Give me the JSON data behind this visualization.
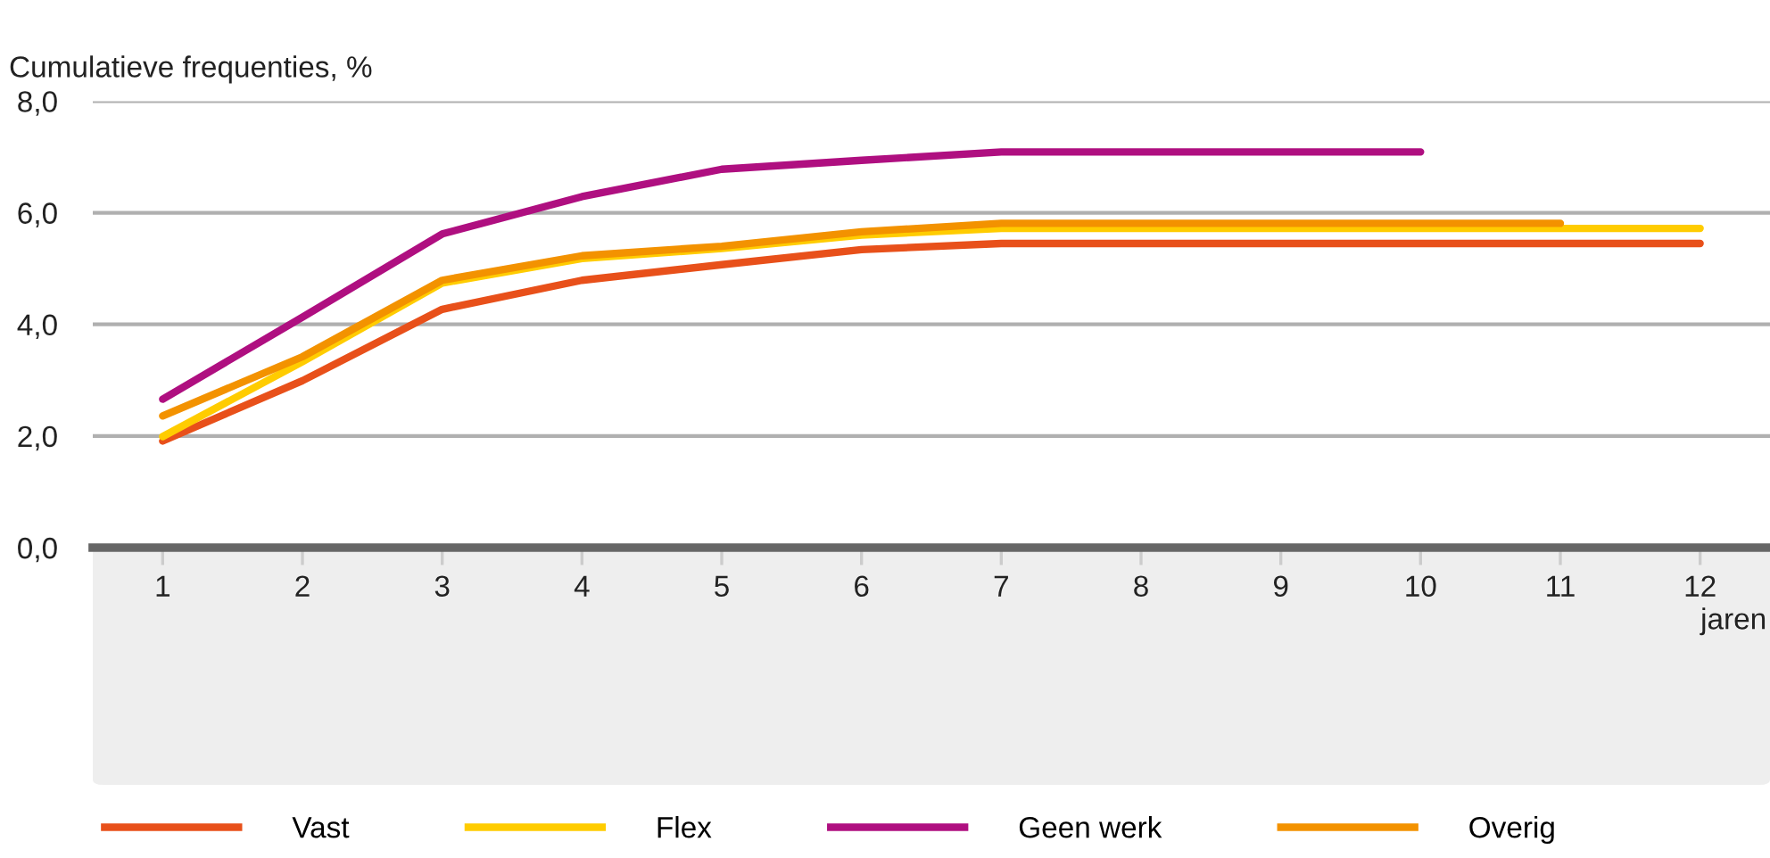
{
  "chart_data": {
    "type": "line",
    "ylabel": "Cumulatieve frequenties, %",
    "xlabel": "jaren",
    "categories": [
      "1",
      "2",
      "3",
      "4",
      "5",
      "6",
      "7",
      "8",
      "9",
      "10",
      "11",
      "12"
    ],
    "series": [
      {
        "name": "Vast",
        "color": "#e8501a",
        "values": [
          1.91,
          2.99,
          4.27,
          4.79,
          5.07,
          5.34,
          5.45,
          5.45,
          5.45,
          5.45,
          5.45,
          5.45
        ]
      },
      {
        "name": "Flex",
        "color": "#ffcc00",
        "values": [
          1.99,
          3.33,
          4.74,
          5.18,
          5.36,
          5.6,
          5.72,
          5.72,
          5.72,
          5.72,
          5.72,
          5.72
        ]
      },
      {
        "name": "Geen werk",
        "color": "#af0f80",
        "values": [
          2.66,
          4.13,
          5.62,
          6.29,
          6.78,
          6.94,
          7.09,
          7.09,
          7.09,
          7.09,
          null,
          null
        ]
      },
      {
        "name": "Overig",
        "color": "#f39200",
        "values": [
          2.36,
          3.42,
          4.79,
          5.23,
          5.4,
          5.66,
          5.81,
          5.81,
          5.81,
          5.81,
          5.81,
          null
        ]
      }
    ],
    "ylim": [
      0,
      8
    ],
    "yticks": [
      {
        "value": 0,
        "label": "0,0"
      },
      {
        "value": 2,
        "label": "2,0"
      },
      {
        "value": 4,
        "label": "4,0"
      },
      {
        "value": 6,
        "label": "6,0"
      },
      {
        "value": 8,
        "label": "8,0"
      }
    ],
    "grid": "y",
    "legend": "bottom",
    "marker": "none",
    "line_style": "solid"
  }
}
